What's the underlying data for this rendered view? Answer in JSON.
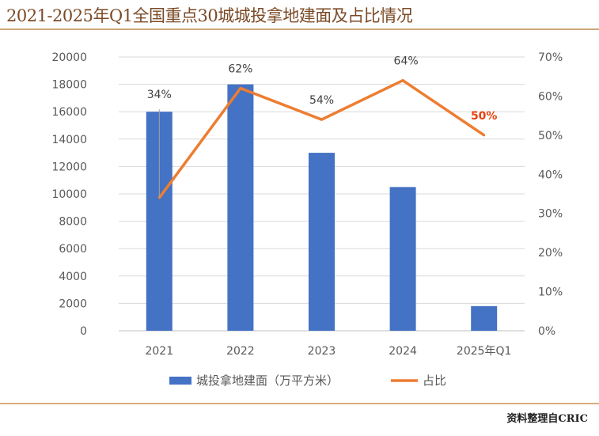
{
  "title": "2021-2025年Q1全国重点30城城投拿地建面及占比情况",
  "source": "资料整理自CRIC",
  "colors": {
    "bar": "#4472c4",
    "line": "#ed7d31",
    "highlight_label": "#e8400c",
    "title": "#7a4a26"
  },
  "chart_data": {
    "type": "bar+line",
    "categories": [
      "2021",
      "2022",
      "2023",
      "2024",
      "2025年Q1"
    ],
    "series": [
      {
        "name": "城投拿地建面（万平方米）",
        "type": "bar",
        "axis": "left",
        "values": [
          16000,
          18000,
          13000,
          10500,
          1800
        ]
      },
      {
        "name": "占比",
        "type": "line",
        "axis": "right",
        "values": [
          34,
          62,
          54,
          64,
          50
        ],
        "labels": [
          "34%",
          "62%",
          "54%",
          "64%",
          "50%"
        ]
      }
    ],
    "y_left": {
      "ylim": [
        0,
        20000
      ],
      "ticks": [
        "0",
        "2000",
        "4000",
        "6000",
        "8000",
        "10000",
        "12000",
        "14000",
        "16000",
        "18000",
        "20000"
      ]
    },
    "y_right": {
      "ylim": [
        0,
        70
      ],
      "ticks": [
        "0%",
        "10%",
        "20%",
        "30%",
        "40%",
        "50%",
        "60%",
        "70%"
      ]
    },
    "grid": true,
    "legend_position": "bottom"
  }
}
